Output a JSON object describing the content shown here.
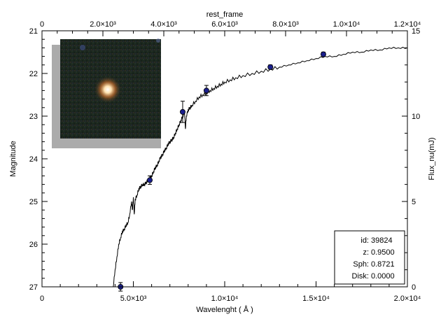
{
  "chart_data": {
    "type": "line",
    "x_bottom": {
      "label": "Wavelenght ( Å )",
      "range": [
        0,
        20000
      ],
      "ticks": [
        {
          "value": 0,
          "label": "0"
        },
        {
          "value": 5000,
          "label": "5.0×10³"
        },
        {
          "value": 10000,
          "label": "1.0×10⁴"
        },
        {
          "value": 15000,
          "label": "1.5×10⁴"
        },
        {
          "value": 20000,
          "label": "2.0×10⁴"
        }
      ]
    },
    "x_top": {
      "label": "rest_frame",
      "range": [
        0,
        12000
      ],
      "ticks": [
        {
          "value": 0,
          "label": "0"
        },
        {
          "value": 2000,
          "label": "2.0×10³"
        },
        {
          "value": 4000,
          "label": "4.0×10³"
        },
        {
          "value": 6000,
          "label": "6.0×10³"
        },
        {
          "value": 8000,
          "label": "8.0×10³"
        },
        {
          "value": 10000,
          "label": "1.0×10⁴"
        },
        {
          "value": 12000,
          "label": "1.2×10⁴"
        }
      ]
    },
    "y_left": {
      "label": "Magnitude",
      "range": [
        27,
        21
      ],
      "inverted": true,
      "ticks": [
        {
          "value": 21,
          "label": "21"
        },
        {
          "value": 22,
          "label": "22"
        },
        {
          "value": 23,
          "label": "23"
        },
        {
          "value": 24,
          "label": "24"
        },
        {
          "value": 25,
          "label": "25"
        },
        {
          "value": 26,
          "label": "26"
        },
        {
          "value": 27,
          "label": "27"
        }
      ]
    },
    "y_right": {
      "label": "Flux_nu(mJ)",
      "range": [
        0,
        15
      ],
      "ticks": [
        {
          "value": 0,
          "label": "0"
        },
        {
          "value": 5,
          "label": "5"
        },
        {
          "value": 10,
          "label": "10"
        },
        {
          "value": 15,
          "label": "15"
        }
      ]
    },
    "sed_model": {
      "color": "#000000",
      "points": [
        [
          3900,
          27.0
        ],
        [
          4000,
          26.6
        ],
        [
          4100,
          26.3
        ],
        [
          4200,
          26.0
        ],
        [
          4300,
          25.85
        ],
        [
          4400,
          25.7
        ],
        [
          4500,
          25.65
        ],
        [
          4600,
          25.55
        ],
        [
          4700,
          25.5
        ],
        [
          4800,
          25.3
        ],
        [
          4900,
          25.0
        ],
        [
          4950,
          25.2
        ],
        [
          5000,
          24.9
        ],
        [
          5050,
          25.3
        ],
        [
          5100,
          24.95
        ],
        [
          5200,
          24.85
        ],
        [
          5300,
          24.7
        ],
        [
          5400,
          24.65
        ],
        [
          5500,
          24.6
        ],
        [
          5600,
          24.6
        ],
        [
          5700,
          24.55
        ],
        [
          5800,
          24.5
        ],
        [
          5900,
          24.45
        ],
        [
          6000,
          24.4
        ],
        [
          6100,
          24.3
        ],
        [
          6200,
          24.2
        ],
        [
          6300,
          24.15
        ],
        [
          6400,
          24.05
        ],
        [
          6500,
          23.95
        ],
        [
          6600,
          23.9
        ],
        [
          6700,
          23.8
        ],
        [
          6800,
          23.75
        ],
        [
          6900,
          23.65
        ],
        [
          7000,
          23.6
        ],
        [
          7100,
          23.55
        ],
        [
          7200,
          23.5
        ],
        [
          7300,
          23.4
        ],
        [
          7400,
          23.3
        ],
        [
          7500,
          23.2
        ],
        [
          7600,
          23.1
        ],
        [
          7700,
          23.0
        ],
        [
          7800,
          22.9
        ],
        [
          7850,
          23.3
        ],
        [
          7900,
          23.0
        ],
        [
          8000,
          22.85
        ],
        [
          8100,
          22.8
        ],
        [
          8200,
          22.75
        ],
        [
          8400,
          22.65
        ],
        [
          8600,
          22.55
        ],
        [
          8800,
          22.5
        ],
        [
          9000,
          22.45
        ],
        [
          9200,
          22.4
        ],
        [
          9400,
          22.35
        ],
        [
          9600,
          22.3
        ],
        [
          9800,
          22.25
        ],
        [
          10000,
          22.2
        ],
        [
          10300,
          22.15
        ],
        [
          10600,
          22.1
        ],
        [
          11000,
          22.05
        ],
        [
          11500,
          22.0
        ],
        [
          12000,
          21.95
        ],
        [
          12500,
          21.9
        ],
        [
          13000,
          21.85
        ],
        [
          13500,
          21.8
        ],
        [
          14000,
          21.75
        ],
        [
          14500,
          21.7
        ],
        [
          15000,
          21.65
        ],
        [
          15500,
          21.6
        ],
        [
          16000,
          21.6
        ],
        [
          16500,
          21.55
        ],
        [
          17000,
          21.5
        ],
        [
          17500,
          21.5
        ],
        [
          18000,
          21.45
        ],
        [
          18500,
          21.45
        ],
        [
          19000,
          21.4
        ],
        [
          19500,
          21.4
        ],
        [
          20000,
          21.4
        ]
      ]
    },
    "photometry": {
      "color": "#1a1f8c",
      "points": [
        {
          "x": 4300,
          "y": 27.0,
          "err": 0.1
        },
        {
          "x": 5900,
          "y": 24.5,
          "err": 0.1
        },
        {
          "x": 7700,
          "y": 22.9,
          "err": 0.25
        },
        {
          "x": 9000,
          "y": 22.4,
          "err": 0.12
        },
        {
          "x": 12500,
          "y": 21.85,
          "err": 0.05
        },
        {
          "x": 15400,
          "y": 21.55,
          "err": 0.05
        }
      ]
    }
  },
  "info": {
    "id_label": "id:",
    "id_value": "39824",
    "z_label": "z:",
    "z_value": "0.9500",
    "sph_label": "Sph:",
    "sph_value": "0.8721",
    "disk_label": "Disk:",
    "disk_value": "0.0000"
  }
}
